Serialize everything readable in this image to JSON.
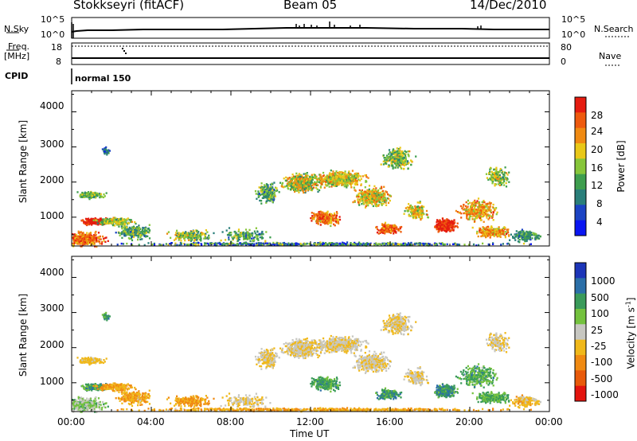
{
  "header": {
    "station": "Stokkseyri (fitACF)",
    "beam": "Beam 05",
    "date": "14/Dec/2010"
  },
  "panels": {
    "nsky_label": "N.Sky",
    "nsearch_label": "N.Search",
    "nsky_ticks": [
      "10^5",
      "10^0"
    ],
    "nsearch_ticks": [
      "10^5",
      "10^0"
    ],
    "freq_label_1": "Freq.",
    "freq_label_2": "[MHz]",
    "freq_ticks": [
      "18",
      "8"
    ],
    "nave_label": "Nave",
    "nave_ticks": [
      "80",
      "0"
    ],
    "cpid_label": "CPID",
    "cpid_value": "normal 150"
  },
  "chart_data": [
    {
      "type": "heatmap",
      "name": "power",
      "ylabel": "Slant Range [km]",
      "yticks": [
        "4000",
        "3000",
        "2000",
        "1000"
      ],
      "ylim": [
        180,
        4600
      ],
      "colorbar_label": "Power [dB]",
      "colorbar_ticks": [
        "28",
        "24",
        "20",
        "16",
        "12",
        "8",
        "4"
      ],
      "colors": [
        "#0a16f2",
        "#1c44c4",
        "#2a7f7a",
        "#3e9e4e",
        "#87c63a",
        "#e9c818",
        "#f08a12",
        "#ee5a0e",
        "#e51c10"
      ]
    },
    {
      "type": "heatmap",
      "name": "velocity",
      "ylabel": "Slant Range [km]",
      "yticks": [
        "4000",
        "3000",
        "2000",
        "1000"
      ],
      "ylim": [
        180,
        4600
      ],
      "colorbar_label": "Velocity [m s",
      "colorbar_label_sup": "-1",
      "colorbar_label_end": "]",
      "colorbar_ticks": [
        "1000",
        "500",
        "100",
        "25",
        "-25",
        "-100",
        "-500",
        "-1000"
      ],
      "colors": [
        "#1c35b8",
        "#2b6fa8",
        "#3a9b5a",
        "#74c23e",
        "#c7c7c1",
        "#f0b81a",
        "#f08a12",
        "#e85a0a",
        "#e3140e"
      ]
    }
  ],
  "time_axis": {
    "ticks": [
      "00:00",
      "04:00",
      "08:00",
      "12:00",
      "16:00",
      "20:00",
      "00:00"
    ],
    "label": "Time UT"
  }
}
